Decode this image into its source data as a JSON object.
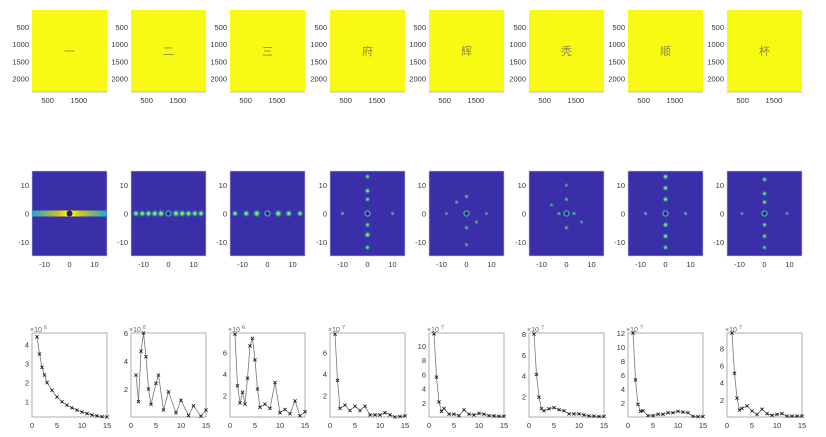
{
  "chart_data": {
    "characters": [
      "一",
      "二",
      "三",
      "府",
      "辉",
      "秃",
      "顺",
      "杯"
    ],
    "row1": {
      "type": "heatmap",
      "description_values": "constant yellow images with glyph",
      "xlim": [
        0,
        2400
      ],
      "ylim": [
        0,
        2400
      ],
      "xticks": [
        500,
        1500
      ],
      "yticks": [
        500,
        1000,
        1500,
        2000
      ],
      "fill_color": "#f9fa14",
      "glyph_color": "#8a8a3a"
    },
    "row2": {
      "type": "heatmap",
      "xlim": [
        -15,
        15
      ],
      "ylim": [
        -15,
        15
      ],
      "xticks": [
        -10,
        0,
        10
      ],
      "yticks": [
        10,
        0,
        -10
      ],
      "background_color": "#3a2fa8",
      "panels": [
        {
          "pattern": "hbar",
          "spots": []
        },
        {
          "pattern": "spots",
          "spots": [
            [
              -13,
              0,
              0.8
            ],
            [
              -10.5,
              0,
              0.8
            ],
            [
              -8,
              0,
              0.85
            ],
            [
              -5.5,
              0,
              0.9
            ],
            [
              -3,
              0,
              1
            ],
            [
              3,
              0,
              1
            ],
            [
              5.5,
              0,
              0.9
            ],
            [
              8,
              0,
              0.85
            ],
            [
              10.5,
              0,
              0.8
            ],
            [
              13,
              0,
              0.8
            ]
          ]
        },
        {
          "pattern": "spots",
          "spots": [
            [
              -13,
              0,
              0.7
            ],
            [
              -8.5,
              0,
              0.8
            ],
            [
              -4.3,
              0,
              1
            ],
            [
              4.3,
              0,
              1
            ],
            [
              8.5,
              0,
              0.8
            ],
            [
              13,
              0,
              0.7
            ]
          ]
        },
        {
          "pattern": "spots",
          "spots": [
            [
              0,
              13,
              0.5
            ],
            [
              0,
              8,
              0.6
            ],
            [
              0,
              5,
              0.5
            ],
            [
              0,
              -4,
              0.5
            ],
            [
              0,
              -7.5,
              0.7
            ],
            [
              0,
              -12,
              0.5
            ],
            [
              -10,
              0,
              0.3
            ],
            [
              10,
              0,
              0.3
            ]
          ]
        },
        {
          "pattern": "spots",
          "spots": [
            [
              0,
              6,
              0.35
            ],
            [
              0,
              -5,
              0.35
            ],
            [
              -4,
              4,
              0.3
            ],
            [
              4,
              -3,
              0.3
            ],
            [
              -8,
              0,
              0.25
            ],
            [
              8,
              0,
              0.25
            ],
            [
              0,
              -11,
              0.3
            ]
          ]
        },
        {
          "pattern": "spots",
          "spots": [
            [
              0,
              5,
              0.35
            ],
            [
              0,
              -5,
              0.35
            ],
            [
              -3,
              0,
              0.3
            ],
            [
              3,
              0,
              0.3
            ],
            [
              -6,
              3,
              0.25
            ],
            [
              6,
              -3,
              0.25
            ],
            [
              0,
              10,
              0.25
            ]
          ]
        },
        {
          "pattern": "spots",
          "spots": [
            [
              0,
              13,
              0.6
            ],
            [
              0,
              9,
              0.6
            ],
            [
              0,
              5,
              0.6
            ],
            [
              0,
              -4,
              0.6
            ],
            [
              0,
              -8,
              0.6
            ],
            [
              0,
              -12,
              0.5
            ],
            [
              -8,
              0,
              0.3
            ],
            [
              8,
              0,
              0.3
            ]
          ]
        },
        {
          "pattern": "spots",
          "spots": [
            [
              0,
              12,
              0.5
            ],
            [
              0,
              7,
              0.5
            ],
            [
              0,
              4,
              0.5
            ],
            [
              0,
              -4,
              0.5
            ],
            [
              0,
              -8,
              0.5
            ],
            [
              0,
              -12,
              0.4
            ],
            [
              -9,
              0,
              0.25
            ],
            [
              9,
              0,
              0.25
            ]
          ]
        }
      ]
    },
    "row3": {
      "type": "line",
      "marker": "x",
      "xlim": [
        0,
        15
      ],
      "xticks": [
        0,
        5,
        10,
        15
      ],
      "panels": [
        {
          "exponent": "×10^6",
          "exp_base": "×10",
          "exp_pow": "6",
          "ylim": [
            0.2,
            4.6
          ],
          "yticks": [
            1,
            2,
            3,
            4
          ],
          "x": [
            1,
            1.5,
            2,
            2.5,
            3,
            4,
            5,
            6,
            7,
            8,
            9,
            10,
            11,
            12,
            13,
            14,
            15
          ],
          "y": [
            4.4,
            3.5,
            2.8,
            2.4,
            2.0,
            1.6,
            1.25,
            1.0,
            0.82,
            0.68,
            0.56,
            0.46,
            0.38,
            0.31,
            0.26,
            0.22,
            0.2
          ]
        },
        {
          "exponent": "×10^6",
          "exp_base": "×10",
          "exp_pow": "6",
          "ylim": [
            0,
            6
          ],
          "yticks": [
            2,
            4,
            6
          ],
          "x": [
            1,
            1.5,
            2,
            2.5,
            3,
            3.5,
            4,
            5,
            5.5,
            6.5,
            7.5,
            9,
            10,
            11.5,
            12.5,
            14,
            15
          ],
          "y": [
            3.0,
            1.1,
            4.7,
            6.0,
            4.3,
            2.0,
            0.9,
            2.4,
            3.0,
            0.5,
            1.8,
            0.3,
            1.2,
            0.1,
            0.8,
            0.05,
            0.5
          ]
        },
        {
          "exponent": "×10^6",
          "exp_base": "×10",
          "exp_pow": "6",
          "ylim": [
            0,
            7.8
          ],
          "yticks": [
            2,
            4,
            6
          ],
          "x": [
            1,
            1.5,
            2,
            2.5,
            3,
            3.5,
            4,
            4.5,
            5,
            5.5,
            6,
            7,
            8,
            9,
            10,
            11,
            12,
            13,
            14,
            15
          ],
          "y": [
            7.7,
            2.9,
            1.3,
            2.3,
            1.2,
            3.6,
            6.6,
            7.3,
            5.3,
            2.6,
            0.9,
            1.2,
            0.8,
            3.2,
            0.4,
            0.7,
            0.3,
            1.5,
            0.1,
            0.5
          ]
        },
        {
          "exponent": "×10^7",
          "exp_base": "×10",
          "exp_pow": "7",
          "ylim": [
            0,
            7.8
          ],
          "yticks": [
            2,
            4,
            6
          ],
          "x": [
            1,
            1.5,
            2,
            3,
            4,
            5,
            6,
            7,
            8,
            9,
            10,
            11,
            12,
            13,
            14,
            15
          ],
          "y": [
            7.7,
            3.4,
            0.8,
            1.1,
            0.6,
            1.0,
            0.6,
            1.0,
            0.2,
            0.2,
            0.2,
            0.4,
            0.2,
            0.0,
            0.05,
            0.1
          ]
        },
        {
          "exponent": "×10^7",
          "exp_base": "×10",
          "exp_pow": "7",
          "ylim": [
            0,
            11.8
          ],
          "yticks": [
            2,
            4,
            6,
            8,
            10
          ],
          "x": [
            1,
            1.5,
            2,
            2.5,
            3,
            4,
            5,
            6,
            7,
            8,
            9,
            10,
            11,
            12,
            13,
            14,
            15
          ],
          "y": [
            11.7,
            5.6,
            2.1,
            0.8,
            1.2,
            0.4,
            0.4,
            0.2,
            1.0,
            0.4,
            0.3,
            0.5,
            0.4,
            0.2,
            0.15,
            0.1,
            0.1
          ]
        },
        {
          "exponent": "×10^7",
          "exp_base": "×10",
          "exp_pow": "7",
          "ylim": [
            0,
            8.1
          ],
          "yticks": [
            2,
            4,
            6,
            8
          ],
          "x": [
            1,
            1.5,
            2,
            2.5,
            3,
            4,
            5,
            6,
            7,
            8,
            9,
            10,
            11,
            12,
            13,
            14,
            15
          ],
          "y": [
            8.0,
            4.1,
            1.9,
            0.8,
            0.6,
            0.8,
            0.9,
            0.7,
            0.6,
            0.3,
            0.3,
            0.3,
            0.2,
            0.1,
            0.08,
            0.05,
            0.05
          ]
        },
        {
          "exponent": "×10^7",
          "exp_base": "×10",
          "exp_pow": "7",
          "ylim": [
            0,
            12
          ],
          "yticks": [
            2,
            4,
            6,
            8,
            10,
            12
          ],
          "x": [
            1,
            1.5,
            2,
            2.5,
            3,
            4,
            5,
            6,
            7,
            8,
            9,
            10,
            11,
            12,
            13,
            14,
            15
          ],
          "y": [
            12,
            5.3,
            1.8,
            0.8,
            0.9,
            0.2,
            0.2,
            0.4,
            0.4,
            0.6,
            0.6,
            0.8,
            0.7,
            0.6,
            0.1,
            0.05,
            0.05
          ]
        },
        {
          "exponent": "×10^7",
          "exp_base": "×10",
          "exp_pow": "7",
          "ylim": [
            0,
            9.8
          ],
          "yticks": [
            2,
            4,
            6,
            8
          ],
          "x": [
            1,
            1.5,
            2,
            2.5,
            3,
            4,
            5,
            6,
            7,
            8,
            9,
            10,
            11,
            12,
            13,
            14,
            15
          ],
          "y": [
            9.8,
            5.1,
            2.2,
            0.8,
            1.0,
            1.3,
            0.7,
            0.3,
            0.9,
            0.4,
            0.2,
            0.3,
            0.4,
            0.1,
            0.1,
            0.1,
            0.1
          ]
        }
      ]
    }
  }
}
